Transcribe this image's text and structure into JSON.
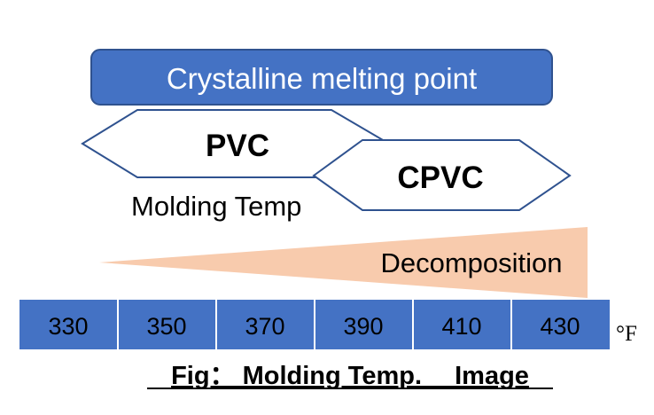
{
  "diagram": {
    "melting_point_label": "Crystalline melting point",
    "pvc_label": "PVC",
    "cpvc_label": "CPVC",
    "molding_temp_label": "Molding Temp",
    "decomposition_label": "Decomposition",
    "unit_label": "°F",
    "scale_values": [
      "330",
      "350",
      "370",
      "390",
      "410",
      "430"
    ],
    "caption": "Fig： Molding Temp.　 Image"
  },
  "colors": {
    "blue": "#4472C4",
    "dark_blue": "#2F528F",
    "peach": "#F8CBAD",
    "white": "#FFFFFF",
    "black": "#000000"
  }
}
